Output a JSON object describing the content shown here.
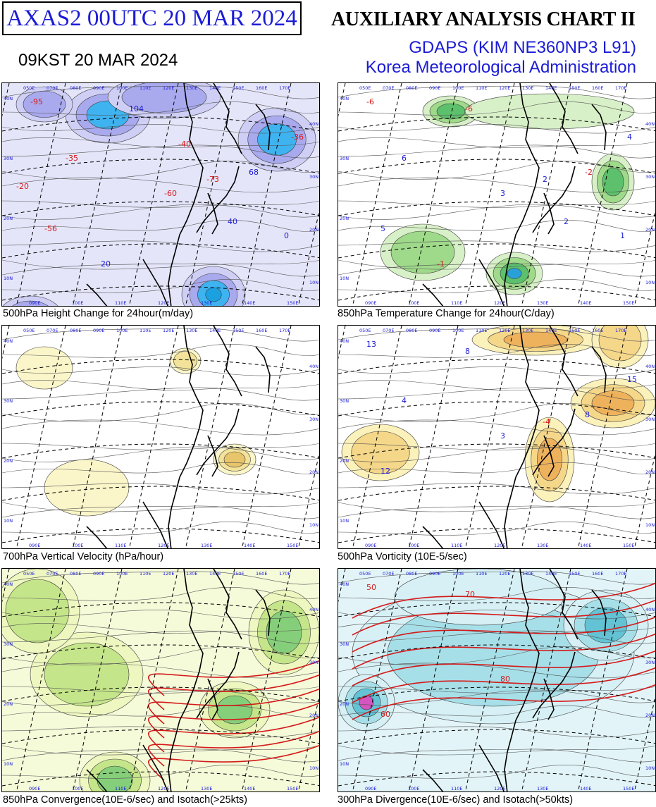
{
  "header": {
    "run_label": "AXAS2  00UTC 20 MAR 2024",
    "local_time": "09KST 20 MAR 2024",
    "chart_title": "AUXILIARY ANALYSIS CHART II",
    "model": "GDAPS (KIM NE360NP3 L91)",
    "agency": "Korea Meteorological Administration"
  },
  "panels": [
    {
      "id": "p1",
      "caption": "500hPa Height Change for 24hour(m/day)",
      "theme": "height",
      "colors": {
        "fill1": "#cfcff5",
        "fill2": "#a9a9ee",
        "fill3": "#3fb3f0",
        "fill4": "#1ba0e0"
      }
    },
    {
      "id": "p2",
      "caption": "850hPa Temperature Change for 24hour(C/day)",
      "theme": "temp",
      "colors": {
        "fill1": "#d8f0c8",
        "fill2": "#9fd98a",
        "fill3": "#5cc06c",
        "fill4": "#2aa0d8"
      }
    },
    {
      "id": "p3",
      "caption": "700hPa Vertical Velocity (hPa/hour)",
      "theme": "omega",
      "colors": {
        "fill1": "#fbf6c9",
        "fill2": "#f2e29a",
        "fill3": "#e8c46a",
        "fill4": "#d98a5a"
      }
    },
    {
      "id": "p4",
      "caption": "500hPa Vorticity (10E-5/sec)",
      "theme": "vort",
      "colors": {
        "fill1": "#fbf1bb",
        "fill2": "#f5d78a",
        "fill3": "#efb25c",
        "fill4": "#d9603a"
      }
    },
    {
      "id": "p5",
      "caption": "850hPa Convergence(10E-6/sec) and Isotach(>25kts)",
      "theme": "conv",
      "colors": {
        "fill1": "#eef7c0",
        "fill2": "#c5e58a",
        "fill3": "#86cf7a",
        "fill4": "#2e9bb0"
      }
    },
    {
      "id": "p6",
      "caption": "300hPa Divergence(10E-6/sec) and Isotach(>50kts)",
      "theme": "div",
      "colors": {
        "fill1": "#d6f0f5",
        "fill2": "#a7dfe8",
        "fill3": "#63c3d5",
        "fill4": "#d455c0"
      }
    }
  ],
  "map_labels": {
    "lon_top": [
      "050E",
      "070E",
      "080E",
      "090E",
      "100E",
      "110E",
      "120E",
      "130E",
      "140E",
      "150E",
      "160E",
      "170E"
    ],
    "lon_bottom": [
      "090E",
      "100E",
      "110E",
      "120E",
      "130E",
      "140E",
      "150E"
    ],
    "lat_left": [
      "40N",
      "30N",
      "20N",
      "10N"
    ],
    "lat_right": [
      "40N",
      "30N",
      "20N",
      "10N"
    ]
  },
  "value_labels": {
    "p1": [
      "-95",
      "-56",
      "104",
      "-60",
      "-73",
      "68",
      "-36",
      "-35",
      "40",
      "20",
      "0",
      "-20",
      "-40"
    ],
    "p2": [
      "-6",
      "5",
      "-6",
      "3",
      "2",
      "-2",
      "4",
      "6",
      "2",
      "-1",
      "1"
    ],
    "p3": [],
    "p4": [
      "13",
      "12",
      "8",
      "3",
      "-4",
      "8",
      "15",
      "4"
    ],
    "p5": [],
    "p6": [
      "50",
      "60",
      "70",
      "80"
    ]
  }
}
